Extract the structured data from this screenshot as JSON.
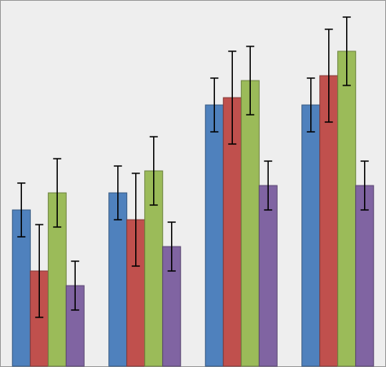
{
  "chart_data": {
    "type": "bar",
    "categories": [
      null,
      null,
      null,
      null
    ],
    "series": [
      {
        "color": "#4f81bd",
        "values": [
          64,
          71,
          107,
          107
        ],
        "errors": [
          11,
          11,
          11,
          11
        ]
      },
      {
        "color": "#c0504d",
        "values": [
          39,
          60,
          110,
          119
        ],
        "errors": [
          19,
          19,
          19,
          19
        ]
      },
      {
        "color": "#9bbb59",
        "values": [
          71,
          80,
          117,
          129
        ],
        "errors": [
          14,
          14,
          14,
          14
        ]
      },
      {
        "color": "#8064a2",
        "values": [
          33,
          49,
          74,
          74
        ],
        "errors": [
          10,
          10,
          10,
          10
        ]
      }
    ],
    "ylim": [
      0,
      150
    ],
    "background": "#eeeeee"
  }
}
